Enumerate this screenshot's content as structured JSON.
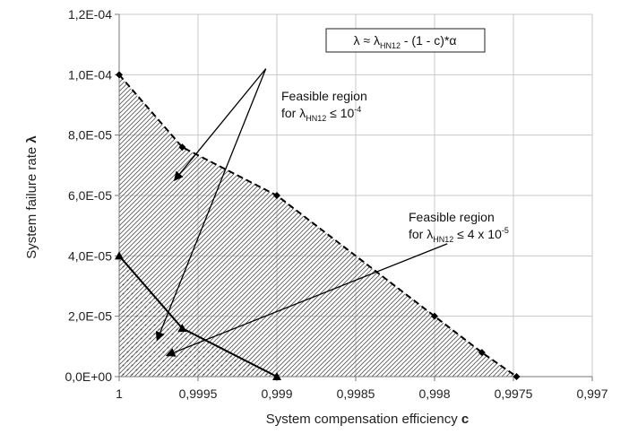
{
  "chart_data": {
    "type": "area",
    "xlabel_prefix": "System compensation efficiency ",
    "xlabel_var": "c",
    "ylabel_prefix": "System failure rate ",
    "ylabel_var": "λ",
    "xlim": [
      1,
      0.997
    ],
    "ylim": [
      0,
      0.00012
    ],
    "x_ticks": [
      "1",
      "0,9995",
      "0,999",
      "0,9985",
      "0,998",
      "0,9975",
      "0,997"
    ],
    "x_tick_values": [
      1,
      0.9995,
      0.999,
      0.9985,
      0.998,
      0.9975,
      0.997
    ],
    "y_ticks": [
      "0,0E+00",
      "2,0E-05",
      "4,0E-05",
      "6,0E-05",
      "8,0E-05",
      "1,0E-04",
      "1,2E-04"
    ],
    "y_tick_values": [
      0,
      2e-05,
      4e-05,
      6e-05,
      8e-05,
      0.0001,
      0.00012
    ],
    "grid": true,
    "series": [
      {
        "x": [
          1,
          0.9996,
          0.999,
          0.998,
          0.9977,
          0.99748
        ],
        "y": [
          0.0001,
          7.6e-05,
          6e-05,
          2e-05,
          8e-06,
          0
        ],
        "marker": "diamond",
        "line": "dashed",
        "fill": "hatch"
      },
      {
        "x": [
          1,
          0.9996,
          0.999
        ],
        "y": [
          4e-05,
          1.6e-05,
          0
        ],
        "marker": "triangle",
        "line": "solid",
        "fill": "dots"
      }
    ],
    "formula": {
      "lambda": "λ ≈ λ",
      "sub": "HN12",
      "rest": " - (1 - c)*α"
    },
    "annotations": [
      {
        "line1": "Feasible region",
        "line2_prefix": "for λ",
        "line2_sub": "HN12",
        "line2_mid": " ≤ 10",
        "line2_sup": "-4",
        "arrow_origin": [
          0.99907,
          0.000102
        ],
        "arrow_targets": [
          [
            0.99965,
            6.5e-05
          ],
          [
            0.99976,
            1.2e-05
          ]
        ]
      },
      {
        "line1": "Feasible region",
        "line2_prefix": "for λ",
        "line2_sub": "HN12",
        "line2_mid": " ≤ 4 x 10",
        "line2_sup": "-5",
        "arrow_origin": [
          0.99792,
          4.4e-05
        ],
        "arrow_targets": [
          [
            0.9997,
            7e-06
          ]
        ]
      }
    ]
  }
}
